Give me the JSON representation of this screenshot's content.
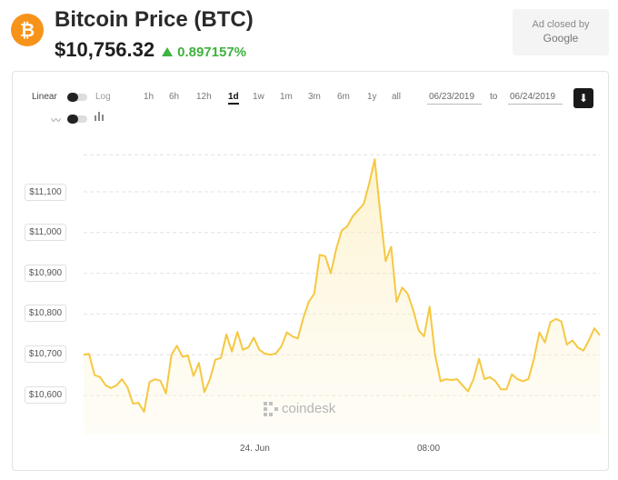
{
  "header": {
    "title": "Bitcoin Price (BTC)",
    "coin_symbol": "₿",
    "price": "$10,756.32",
    "change": "0.897157%",
    "change_color": "#3eb23e",
    "brand_color": "#f7931a"
  },
  "ad": {
    "line1": "Ad closed by",
    "line2": "Google"
  },
  "controls": {
    "scale_linear": "Linear",
    "scale_log": "Log",
    "ranges": [
      "1h",
      "6h",
      "12h",
      "1d",
      "1w",
      "1m",
      "3m",
      "6m",
      "1y",
      "all"
    ],
    "active_range": "1d",
    "date_from": "06/23/2019",
    "date_to": "06/24/2019",
    "to_label": "to"
  },
  "watermark": "coindesk",
  "chart_data": {
    "type": "area",
    "line_color": "#f5c842",
    "y_ticks": [
      "$11,100",
      "$11,000",
      "$10,900",
      "$10,800",
      "$10,700",
      "$10,600"
    ],
    "y_tick_values": [
      11100,
      11000,
      10900,
      10800,
      10700,
      10600
    ],
    "ylim": [
      10530,
      11200
    ],
    "x_ticks": [
      "24. Jun",
      "08:00"
    ],
    "series": [
      {
        "values": [
          10700,
          10702,
          10650,
          10645,
          10625,
          10618,
          10625,
          10640,
          10620,
          10580,
          10582,
          10560,
          10633,
          10640,
          10636,
          10605,
          10700,
          10722,
          10695,
          10698,
          10648,
          10680,
          10608,
          10640,
          10688,
          10692,
          10750,
          10708,
          10756,
          10712,
          10718,
          10742,
          10712,
          10703,
          10700,
          10703,
          10720,
          10755,
          10745,
          10740,
          10790,
          10830,
          10850,
          10945,
          10942,
          10900,
          10960,
          11005,
          11015,
          11040,
          11055,
          11070,
          11120,
          11180,
          11050,
          10930,
          10965,
          10830,
          10865,
          10850,
          10810,
          10760,
          10745,
          10818,
          10700,
          10635,
          10640,
          10638,
          10640,
          10625,
          10610,
          10640,
          10690,
          10640,
          10645,
          10635,
          10615,
          10615,
          10652,
          10640,
          10635,
          10640,
          10690,
          10755,
          10730,
          10780,
          10788,
          10782,
          10725,
          10735,
          10718,
          10710,
          10735,
          10765,
          10748
        ]
      }
    ]
  }
}
